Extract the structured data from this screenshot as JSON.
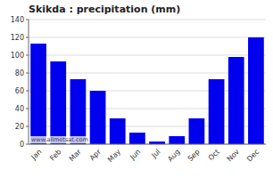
{
  "chart_data": {
    "type": "bar",
    "title": "Skikda : precipitation (mm)",
    "categories": [
      "Jan",
      "Feb",
      "Mar",
      "Apr",
      "May",
      "Jun",
      "Jul",
      "Aug",
      "Sep",
      "Oct",
      "Nov",
      "Dec"
    ],
    "values": [
      113,
      93,
      73,
      60,
      29,
      13,
      3,
      9,
      29,
      73,
      98,
      120
    ],
    "color": "#0000EE",
    "ylim": [
      0,
      140
    ],
    "yticks": [
      0,
      20,
      40,
      60,
      80,
      100,
      120,
      140
    ],
    "grid": true,
    "annotations": [
      "www.allmetsat.com"
    ]
  }
}
